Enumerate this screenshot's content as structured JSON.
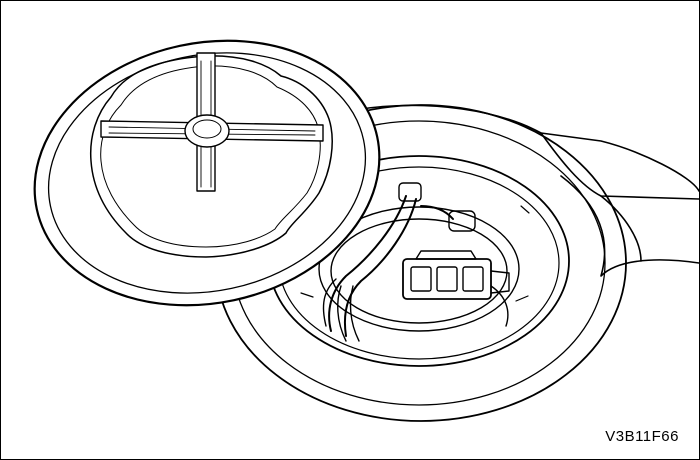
{
  "figure": {
    "code": "V3B11F66",
    "line_color": "#000000",
    "fill_color": "#ffffff"
  }
}
